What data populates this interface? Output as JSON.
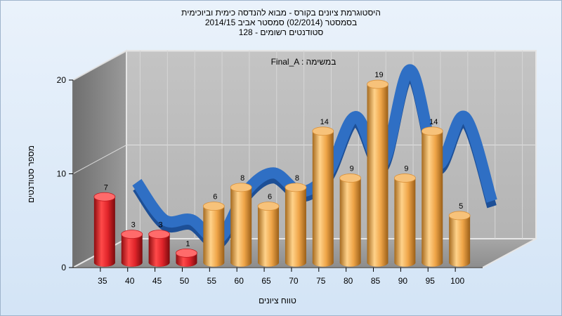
{
  "window": {
    "title_lines": [
      "היסטוגרמת ציונים בקורס - מבוא להנדסה כימית וביוכימית",
      "בסמסטר  (02/2014)  סמסטר אביב 2014/15",
      "סטודנטים רשומים - 128"
    ]
  },
  "chart_data": {
    "type": "bar",
    "title": "היסטוגרמת ציונים בקורס - מבוא להנדסה כימית וביוכימית",
    "subtitle": [
      "בסמסטר  (02/2014)  סמסטר אביב 2014/15",
      "סטודנטים רשומים - 128"
    ],
    "annotation": "Final_A : במשימה",
    "xlabel": "טווח ציונים",
    "ylabel": "מספר סטודנטים",
    "ylim": [
      0,
      20
    ],
    "y_ticks": [
      0,
      10,
      20
    ],
    "x_ticks": [
      "35",
      "40",
      "45",
      "50",
      "55",
      "60",
      "65",
      "70",
      "75",
      "80",
      "85",
      "90",
      "95",
      "100"
    ],
    "categories": [
      "35",
      "40",
      "45",
      "50",
      "55",
      "60",
      "65",
      "70",
      "75",
      "80",
      "85",
      "90",
      "95",
      "100"
    ],
    "values": [
      7,
      3,
      3,
      1,
      6,
      8,
      6,
      8,
      14,
      9,
      19,
      9,
      14,
      5
    ],
    "bar_colors": {
      "failing": "#e0242a",
      "passing": "#f0a84a",
      "trend": "#2f6fc4"
    },
    "failing_categories": [
      "35",
      "40",
      "45",
      "50"
    ],
    "grid": true,
    "style": "3d-cylinder"
  }
}
